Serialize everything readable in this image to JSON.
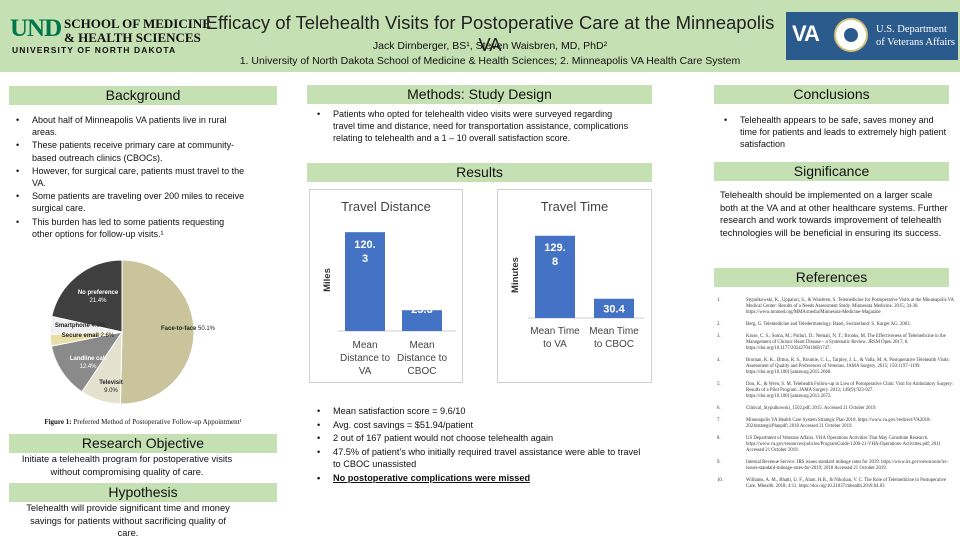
{
  "header": {
    "logo_left": {
      "mark": "UND",
      "line1": "SCHOOL OF MEDICINE",
      "line2": "& HEALTH SCIENCES",
      "line3": "UNIVERSITY OF NORTH DAKOTA"
    },
    "title": "Efficacy of Telehealth Visits for Postoperative Care at the Minneapolis VA",
    "authors": "Jack Dirnberger, BS¹, Steven Waisbren, MD, PhD²",
    "affiliations": "1. University of North Dakota School of Medicine & Health Sciences; 2. Minneapolis VA Health Care System",
    "logo_right": {
      "mark": "VA",
      "line1": "U.S. Department",
      "line2": "of Veterans Affairs"
    }
  },
  "background": {
    "heading": "Background",
    "bullets": [
      "About half of Minneapolis VA patients live in rural areas.",
      "These patients receive primary care at community-based outreach clinics (CBOCs).",
      "However, for surgical care, patients must travel to the VA.",
      "Some patients are traveling over 200 miles to receive surgical care.",
      "This burden has led to some patients requesting other options for follow-up visits.¹"
    ],
    "figure_caption_bold": "Figure 1:",
    "figure_caption": " Preferred Method of Postoperative Follow-up Appointment¹"
  },
  "research_objective": {
    "heading": "Research Objective",
    "text": "Initiate a telehealth program for postoperative visits without compromising quality of care."
  },
  "hypothesis": {
    "heading": "Hypothesis",
    "text": "Telehealth will provide significant time and money savings for patients without sacrificing quality of care."
  },
  "methods": {
    "heading": "Methods: Study Design",
    "bullets": [
      "Patients who opted for telehealth video visits were surveyed regarding travel time and distance, need for transportation assistance, complications relating to telehealth and a 1 – 10 overall satisfaction score."
    ]
  },
  "results": {
    "heading": "Results",
    "bullets": [
      "Mean satisfaction score = 9.6/10",
      "Avg. cost savings = $51.94/patient",
      "2 out of 167 patient would not choose telehealth again",
      "47.5% of patient’s who initially required travel assistance were able to travel to CBOC unassisted",
      "No postoperative complications were missed"
    ]
  },
  "conclusions": {
    "heading": "Conclusions",
    "bullets": [
      "Telehealth appears to be safe, saves money and time for patients and leads to extremely high patient satisfaction"
    ]
  },
  "significance": {
    "heading": "Significance",
    "text": "Telehealth should be implemented on a larger scale both at the VA and at other healthcare systems. Further research and work towards improvement of telehealth technologies will be beneficial in ensuring its success."
  },
  "references": {
    "heading": "References",
    "items": [
      {
        "num": "1.",
        "text": "Stypulkowski, K., Uppaluri, S., & Waisbren, S. Telemedicine for Postoperative Visits at the Minneapolis VA Medical Center: Results of a Needs Assessment Study. Minnesota Medicine. 2015; 34-36. https://www.mnmed.org/MMA/media/Minnesota-Medicine-Magazine"
      },
      {
        "num": "2.",
        "text": "Berg, G. Telemedicine and Teledermatology. Basel, Switzerland: S. Karger AG. 2003."
      },
      {
        "num": "3.",
        "text": "Kruse, C. S.; Soma, M.; Pulluri, D.; Nemali, N. T.; Brooks, M. The Effectiveness of Telemedicine in the Management of Chronic Heart Disease – a Systematic Review. JRSM Open 2017, 8. https://doi.org/10.1177/2054270416681747."
      },
      {
        "num": "4.",
        "text": "Broman, K. K., Dittus, R. S., Roumie, C. L., Tarpley, J. L., & Valla, M. A. Postoperative Telehealth Visits: Assessment of Quality and Preferences of Veterans. JAMA Surgery. 2015; 150:1197–1199. https://doi.org/10.1001/jamasurg.2015.2660."
      },
      {
        "num": "5.",
        "text": "Dou, K., & Wren, S. M. Telehealth Follow-up in Lieu of Postoperative Clinic Visit for Ambulatory Surgery: Results of a Pilot Program. JAMA Surgery. 2013; 149(9):923-927. https://doi.org/10.1001/jamasurg.2013.2672."
      },
      {
        "num": "6.",
        "text": "Clinical_Stypulkowski_1502.pdf; 2015. Accessed 21 October 2019."
      },
      {
        "num": "7.",
        "text": "Minneapolis VA Health Care System Strategic Plan 2018. https://www.va.gov/vedirect/VA2018-2024strategicPlanpdf; 2018 Accessed 21 October 2019."
      },
      {
        "num": "8.",
        "text": "US Department of Veterans Affairs. VHA Operations Activities That May Constitute Research. https://www.va.gov/resources/policies/ProgramGuide-1200-21-VHA-Operations-Activities.pdf; 2011 Accessed 21 October 2019."
      },
      {
        "num": "9.",
        "text": "Internal Revenue Service. IRS issues standard mileage rates for 2019. https://www.irs.gov/newsroom/irs-issues-standard-mileage-rates-for-2019; 2018 Accessed 21 October 2019."
      },
      {
        "num": "10.",
        "text": "Williams, A. M., Bhatti, U. F., Alam, H.B., & Nikolian, V. C. The Role of Telemedicine in Postoperative Care. Mhealth. 2018; 4:11. https://doi.org/10.21037/mhealth.2018.04.03"
      }
    ]
  },
  "chart_data": [
    {
      "type": "pie",
      "title": "",
      "labels": [
        "Face-to-face",
        "Televisit",
        "Landline call",
        "Secure email",
        "Smartphone",
        "No preference"
      ],
      "values": [
        50.1,
        9.0,
        12.4,
        2.6,
        4.0,
        21.4
      ],
      "colors": [
        "#c9c49b",
        "#e4e2cf",
        "#8a8a8a",
        "#e8dfa8",
        "#f0f0f0",
        "#3f3f3f"
      ],
      "data_labels": [
        "Face-to-face 50.1%",
        "Televisit 9.0%",
        "Landline call 12.4%",
        "Secure email 2.6%",
        "Smartphone 4.0%",
        "No preference 21.4%"
      ]
    },
    {
      "type": "bar",
      "title": "Travel Distance",
      "ylabel": "Miles",
      "categories": [
        "Mean Distance to VA",
        "Mean Distance to CBOC"
      ],
      "values": [
        120.3,
        25.3
      ],
      "value_labels": [
        "120.3",
        "25.3"
      ],
      "ylim": [
        0,
        140
      ],
      "colors": [
        "#4472c4",
        "#4472c4"
      ]
    },
    {
      "type": "bar",
      "title": "Travel Time",
      "ylabel": "Minutes",
      "categories": [
        "Mean Time to VA",
        "Mean Time to CBOC"
      ],
      "values": [
        129.8,
        30.4
      ],
      "value_labels": [
        "129.8",
        "30.4"
      ],
      "ylim": [
        0,
        150
      ],
      "colors": [
        "#4472c4",
        "#4472c4"
      ]
    }
  ]
}
